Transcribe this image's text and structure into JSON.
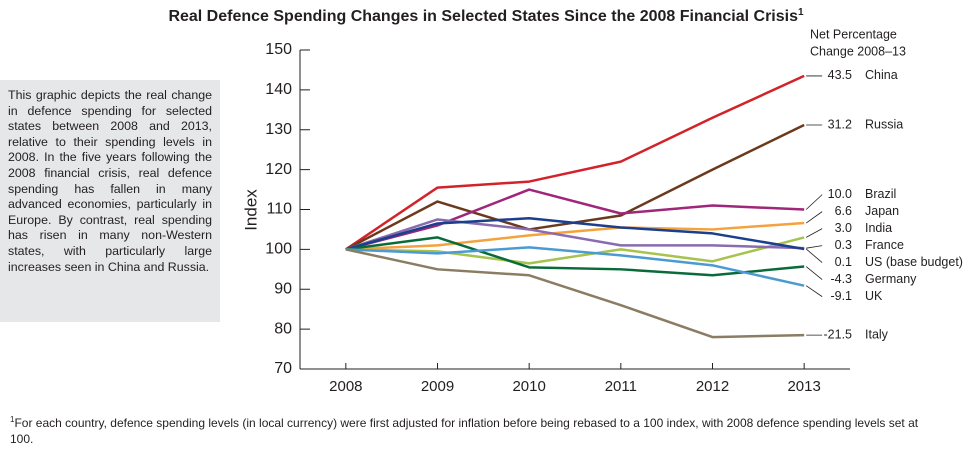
{
  "chart_data": {
    "type": "line",
    "title": "Real Defence Spending Changes in Selected States Since the 2008 Financial Crisis",
    "title_note_mark": "1",
    "y_label": "Index",
    "end_label_header": [
      "Net Percentage",
      "Change 2008–13"
    ],
    "x": [
      2008,
      2009,
      2010,
      2011,
      2012,
      2013
    ],
    "xlim": [
      2007.5,
      2013.5
    ],
    "xticks": [
      2008,
      2009,
      2010,
      2011,
      2012,
      2013
    ],
    "ylim": [
      70,
      150
    ],
    "yticks": [
      70,
      80,
      90,
      100,
      110,
      120,
      130,
      140,
      150
    ],
    "series": [
      {
        "name": "China",
        "color": "#d2232a",
        "values": [
          100,
          115.5,
          117,
          122,
          133,
          143.5
        ],
        "net_change": 43.5
      },
      {
        "name": "Russia",
        "color": "#6b3a1c",
        "values": [
          100,
          112,
          105,
          108.5,
          120,
          131.2
        ],
        "net_change": 31.2
      },
      {
        "name": "Brazil",
        "color": "#a0267a",
        "values": [
          100,
          106,
          115,
          109,
          111,
          110
        ],
        "net_change": {
          "value": 10,
          "label": "10.0"
        }
      },
      {
        "name": "Japan",
        "color": "#f4a23c",
        "values": [
          100,
          101,
          103.5,
          105.5,
          105,
          106.6
        ],
        "net_change": 6.6
      },
      {
        "name": "India",
        "color": "#a6c34d",
        "values": [
          100,
          99.5,
          96.5,
          100,
          97,
          103
        ],
        "net_change": {
          "value": 3,
          "label": "3.0"
        }
      },
      {
        "name": "France",
        "color": "#8a6bb0",
        "values": [
          100,
          107.5,
          105,
          101,
          101,
          100.3
        ],
        "net_change": 0.3
      },
      {
        "name": "US (base budget)",
        "color": "#1c3f8c",
        "values": [
          100,
          106.5,
          107.8,
          105.5,
          104,
          100.1
        ],
        "net_change": 0.1
      },
      {
        "name": "Germany",
        "color": "#0a6b3a",
        "values": [
          100,
          103,
          95.5,
          95,
          93.5,
          95.7
        ],
        "net_change": -4.3
      },
      {
        "name": "UK",
        "color": "#4b9bd2",
        "values": [
          100,
          99,
          100.5,
          98.5,
          96,
          90.9
        ],
        "net_change": -9.1
      },
      {
        "name": "Italy",
        "color": "#8b7d63",
        "values": [
          100,
          95,
          93.5,
          86,
          78,
          78.5
        ],
        "net_change": -21.5
      }
    ]
  },
  "note": "This graphic depicts the real change in defence spending for selected states between 2008 and 2013, relative to their spending levels in 2008. In the five years following the 2008 financial crisis, real defence spending has fallen in many advanced economies, particularly in Europe. By contrast, real spending has risen in many non-Western states, with particularly large increases seen in China and Russia.",
  "footnote": {
    "mark": "1",
    "text": "For each country, defence spending levels (in local currency) were first adjusted for inflation before being rebased to a 100 index, with 2008 defence spending levels set at 100."
  }
}
